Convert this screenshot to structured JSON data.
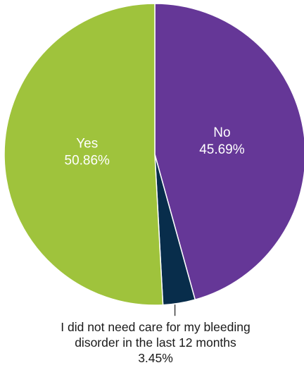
{
  "chart_data": {
    "type": "pie",
    "slices": [
      {
        "label": "No",
        "value": 45.69,
        "value_text": "45.69%",
        "color": "#653797"
      },
      {
        "label": "I did not need care for my bleeding disorder in the last 12 months",
        "label_lines": [
          "I did not need care for my bleeding",
          "disorder in the last 12 months"
        ],
        "value": 3.45,
        "value_text": "3.45%",
        "color": "#082d4b"
      },
      {
        "label": "Yes",
        "value": 50.86,
        "value_text": "50.86%",
        "color": "#9fc33c"
      }
    ],
    "start_angle": "12 o'clock, clockwise"
  }
}
